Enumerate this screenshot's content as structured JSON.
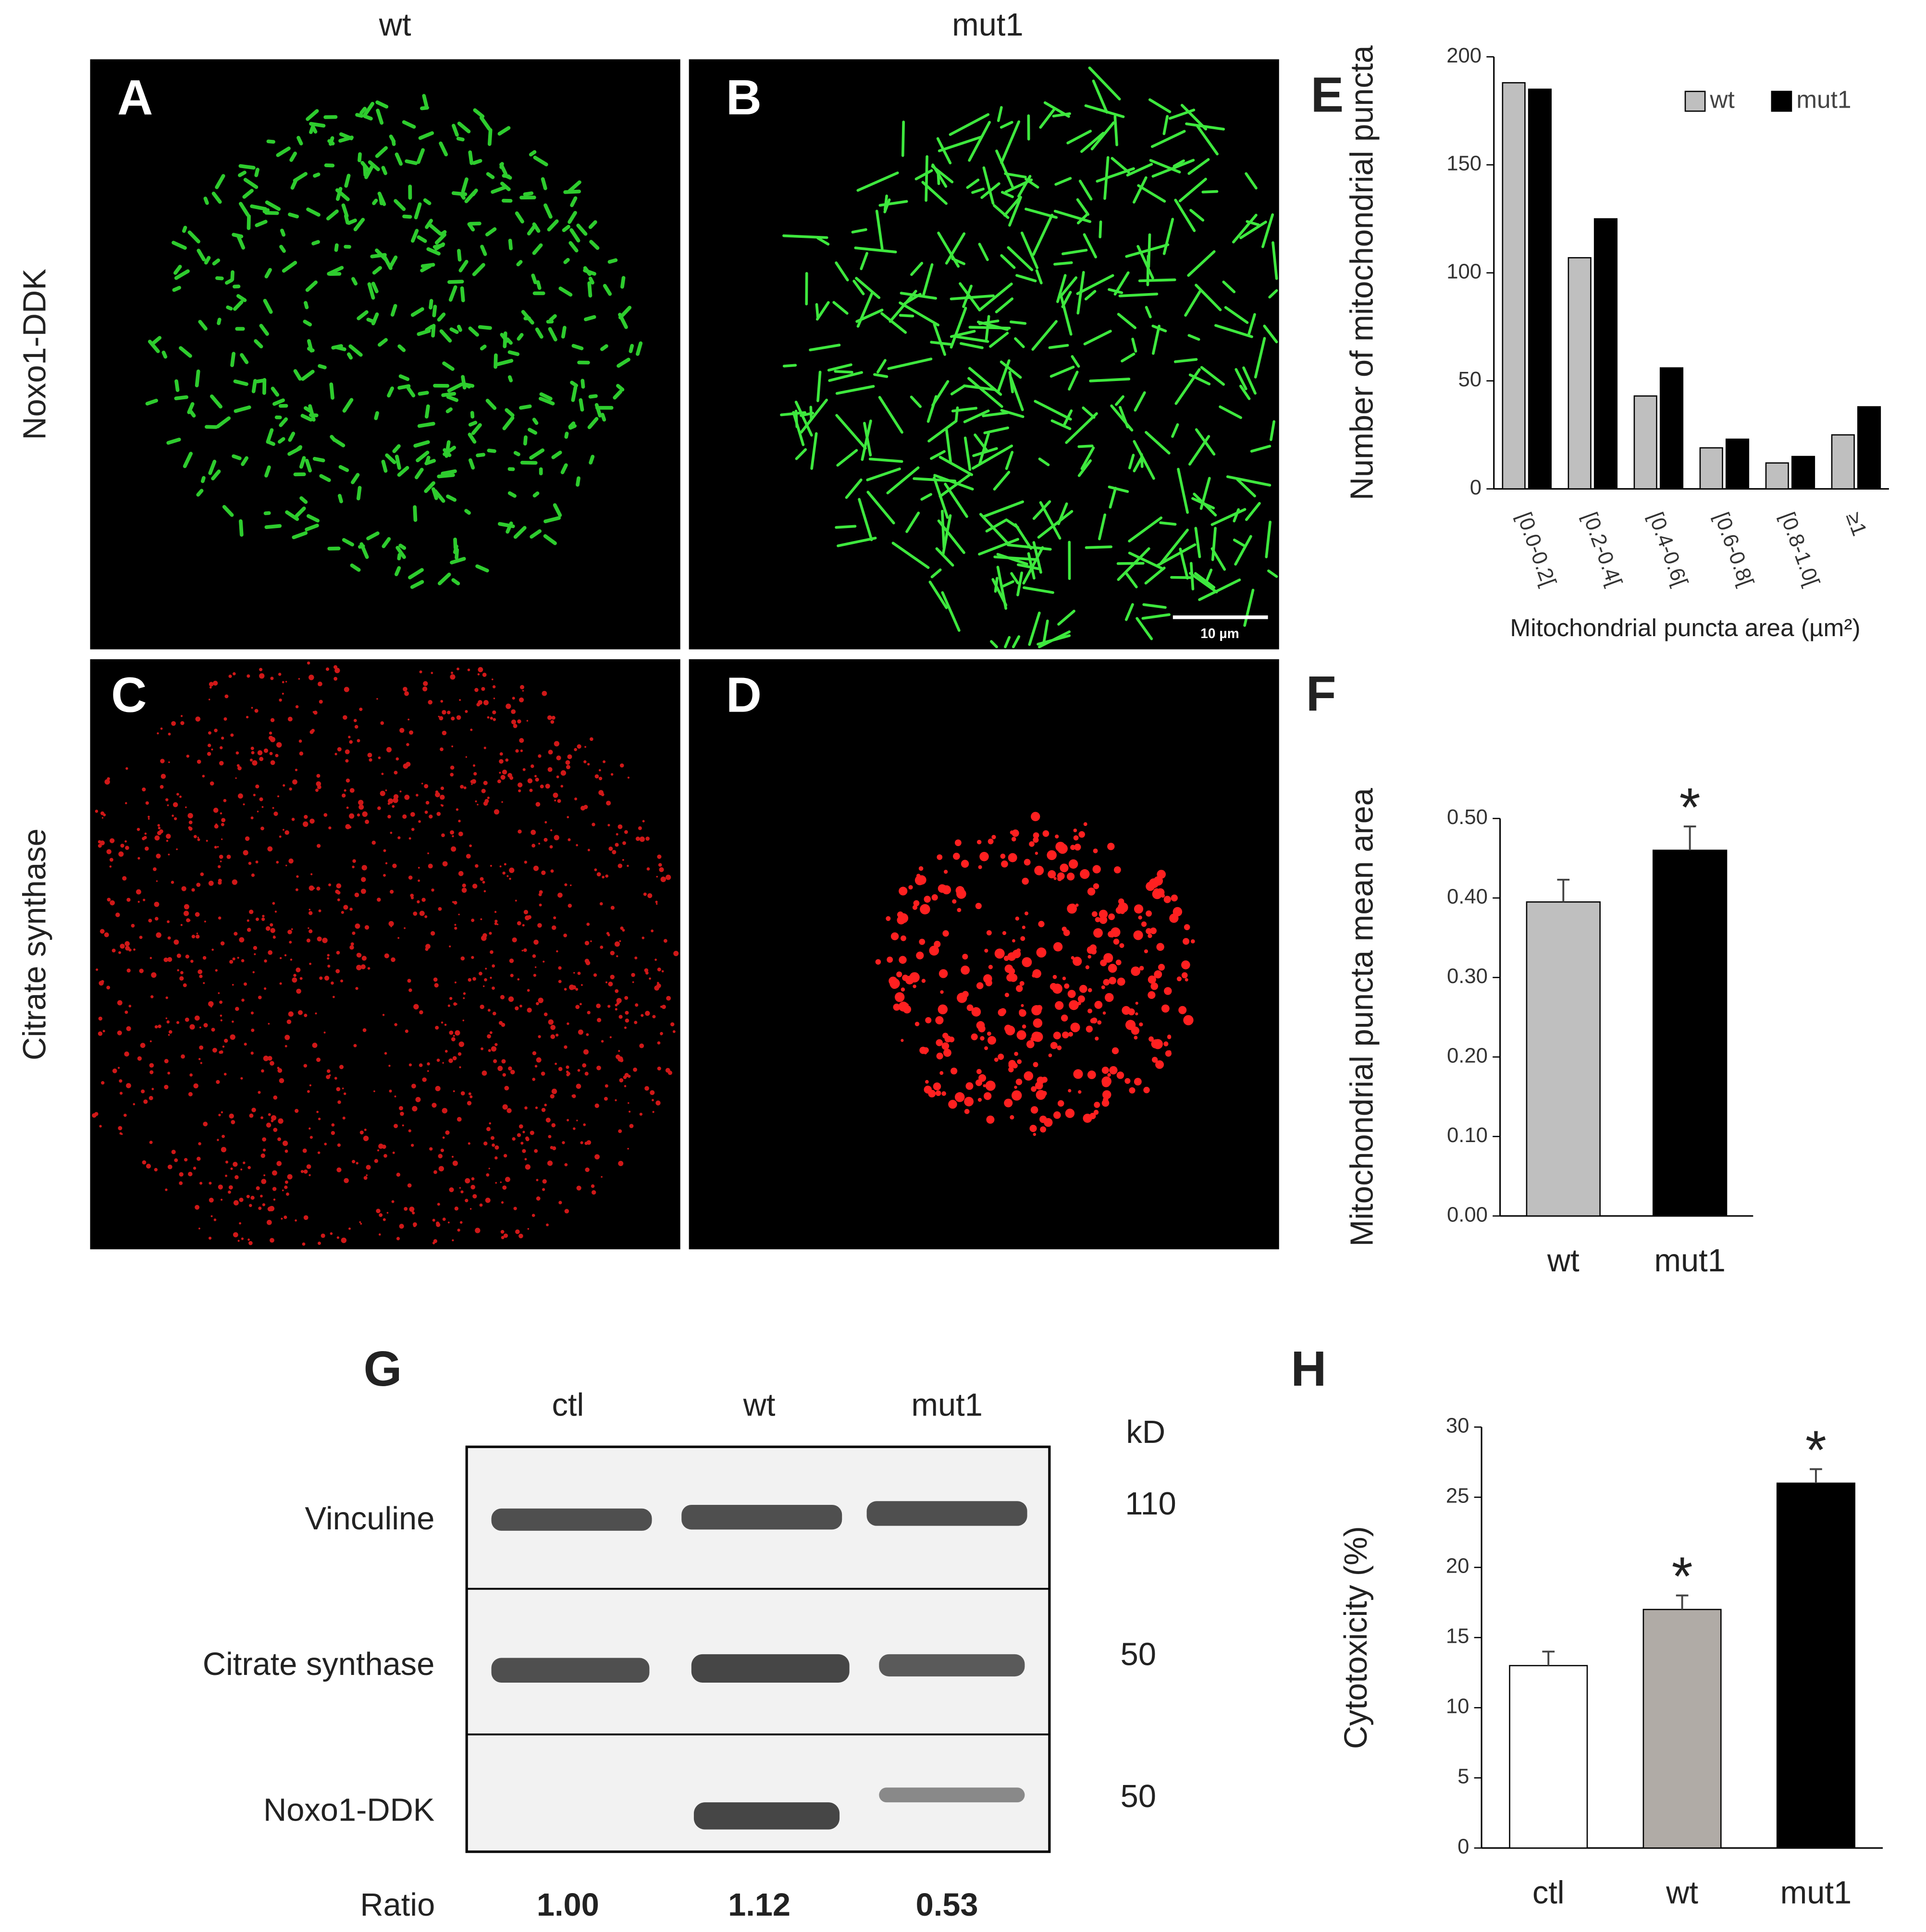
{
  "panels": {
    "columns": [
      "wt",
      "mut1"
    ],
    "rows": [
      "Noxo1-DDK",
      "Citrate synthase"
    ],
    "letters": [
      "A",
      "B",
      "C",
      "D"
    ],
    "scale_bar": "10 µm"
  },
  "chart_data": [
    {
      "type": "bar",
      "panel_label": "E",
      "x_label": "Mitochondrial puncta area (µm²)",
      "y_label": "Number of mitochondrial puncta",
      "categories": [
        "[0.0-0.2[",
        "[0.2-0.4[",
        "[0.4-0.6[",
        "[0.6-0.8[",
        "[0.8-1.0[",
        "≥1"
      ],
      "series": [
        {
          "name": "wt",
          "color": "#bfbfbf",
          "values": [
            188,
            107,
            43,
            19,
            12,
            25
          ]
        },
        {
          "name": "mut1",
          "color": "#000000",
          "values": [
            185,
            125,
            56,
            23,
            15,
            38
          ]
        }
      ],
      "ylim": [
        0,
        200
      ],
      "yticks": [
        0,
        50,
        100,
        150,
        200
      ],
      "legend": "upper right"
    },
    {
      "type": "bar",
      "panel_label": "F",
      "y_label": "Mitochondrial puncta mean area",
      "categories": [
        "wt",
        "mut1"
      ],
      "values": [
        0.395,
        0.46
      ],
      "errors": [
        0.028,
        0.03
      ],
      "colors": [
        "#bfbfbf",
        "#000000"
      ],
      "ylim": [
        0,
        0.5
      ],
      "yticks": [
        {
          "value": 0,
          "label": "0.00"
        },
        {
          "value": 0.1,
          "label": "0.10"
        },
        {
          "value": 0.2,
          "label": "0.20"
        },
        {
          "value": 0.3,
          "label": "0.30"
        },
        {
          "value": 0.4,
          "label": "0.40"
        },
        {
          "value": 0.5,
          "label": "0.50"
        }
      ],
      "annotations": [
        {
          "text": "*",
          "category": "mut1"
        }
      ]
    },
    {
      "type": "bar",
      "panel_label": "H",
      "y_label": "Cytotoxicity (%)",
      "categories": [
        "ctl",
        "wt",
        "mut1"
      ],
      "values": [
        13,
        17,
        26
      ],
      "errors": [
        1,
        1,
        1
      ],
      "colors": [
        "#ffffff",
        "#b0aba6",
        "#000000"
      ],
      "ylim": [
        0,
        30
      ],
      "yticks": [
        0,
        5,
        10,
        15,
        20,
        25,
        30
      ],
      "annotations": [
        {
          "text": "*",
          "category": "wt"
        },
        {
          "text": "*",
          "category": "mut1"
        }
      ]
    }
  ],
  "blot": {
    "panel_label": "G",
    "lanes": [
      "ctl",
      "wt",
      "mut1"
    ],
    "unit": "kD",
    "rows": [
      {
        "label": "Vinculine",
        "kd": "110"
      },
      {
        "label": "Citrate synthase",
        "kd": "50"
      },
      {
        "label": "Noxo1-DDK",
        "kd": "50"
      }
    ],
    "ratio_label": "Ratio",
    "ratios": [
      "1.00",
      "1.12",
      "0.53"
    ]
  }
}
